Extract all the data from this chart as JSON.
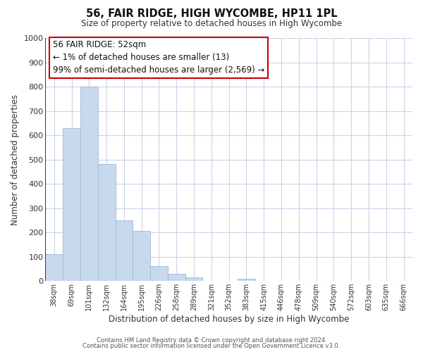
{
  "title": "56, FAIR RIDGE, HIGH WYCOMBE, HP11 1PL",
  "subtitle": "Size of property relative to detached houses in High Wycombe",
  "xlabel": "Distribution of detached houses by size in High Wycombe",
  "ylabel": "Number of detached properties",
  "footer_lines": [
    "Contains HM Land Registry data © Crown copyright and database right 2024.",
    "Contains public sector information licensed under the Open Government Licence v3.0."
  ],
  "bar_labels": [
    "38sqm",
    "69sqm",
    "101sqm",
    "132sqm",
    "164sqm",
    "195sqm",
    "226sqm",
    "258sqm",
    "289sqm",
    "321sqm",
    "352sqm",
    "383sqm",
    "415sqm",
    "446sqm",
    "478sqm",
    "509sqm",
    "540sqm",
    "572sqm",
    "603sqm",
    "635sqm",
    "666sqm"
  ],
  "bar_values": [
    110,
    630,
    800,
    480,
    250,
    205,
    60,
    30,
    15,
    0,
    0,
    10,
    0,
    0,
    0,
    0,
    0,
    0,
    0,
    0,
    0
  ],
  "highlight_bar_index": 0,
  "bar_color": "#c8d9ee",
  "bar_edge_color": "#a0b8d8",
  "highlight_border_color": "#cc0000",
  "annotation_text": "56 FAIR RIDGE: 52sqm\n← 1% of detached houses are smaller (13)\n99% of semi-detached houses are larger (2,569) →",
  "annotation_box_color": "#ffffff",
  "annotation_border_color": "#cc0000",
  "ylim": [
    0,
    1000
  ],
  "yticks": [
    0,
    100,
    200,
    300,
    400,
    500,
    600,
    700,
    800,
    900,
    1000
  ],
  "background_color": "#ffffff",
  "grid_color": "#c8d4e8"
}
